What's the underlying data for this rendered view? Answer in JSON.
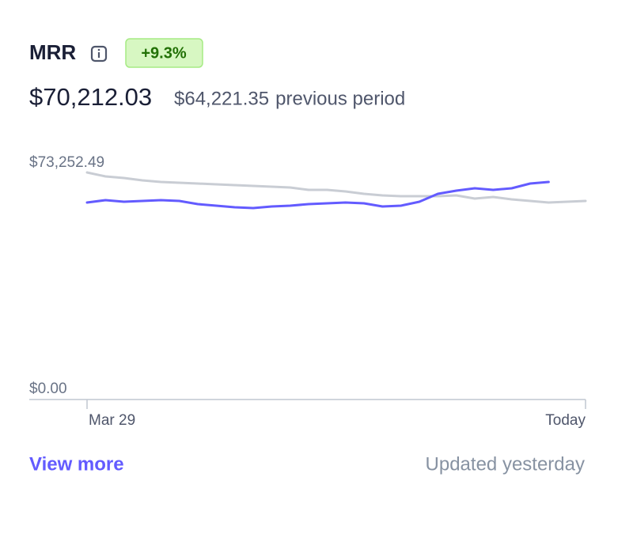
{
  "header": {
    "title": "MRR",
    "badge": "+9.3%",
    "value": "$70,212.03",
    "previous_value": "$64,221.35",
    "previous_label": "previous period"
  },
  "chart_data": {
    "type": "line",
    "categories": [
      "Mar 29",
      null,
      null,
      null,
      null,
      null,
      null,
      null,
      null,
      null,
      null,
      null,
      null,
      null,
      null,
      null,
      null,
      null,
      null,
      null,
      null,
      null,
      null,
      null,
      null,
      null,
      null,
      "Today"
    ],
    "series": [
      {
        "color": "#c9cdd4",
        "values": [
          70311,
          69087,
          68597,
          67862,
          67372,
          67127,
          66882,
          66637,
          66392,
          66147,
          65902,
          65657,
          64922,
          64922,
          64432,
          63697,
          63207,
          62962,
          62962,
          62962,
          63207,
          62227,
          62717,
          61982,
          61492,
          61002,
          61247,
          61492
        ]
      },
      {
        "color": "#635bff",
        "values": [
          61002,
          61737,
          61247,
          61492,
          61737,
          61492,
          60512,
          60022,
          59532,
          59287,
          59777,
          60022,
          60512,
          60757,
          61002,
          60757,
          59777,
          60022,
          61247,
          63697,
          64677,
          65412,
          64922,
          65412,
          66882,
          67372,
          null,
          null
        ]
      }
    ],
    "ylim": [
      0,
      73252.49
    ],
    "yticks": [
      {
        "value": 0,
        "label": "$0.00"
      },
      {
        "value": 73252.49,
        "label": "$73,252.49"
      }
    ]
  },
  "footer": {
    "link": "View more",
    "status": "Updated yesterday"
  }
}
